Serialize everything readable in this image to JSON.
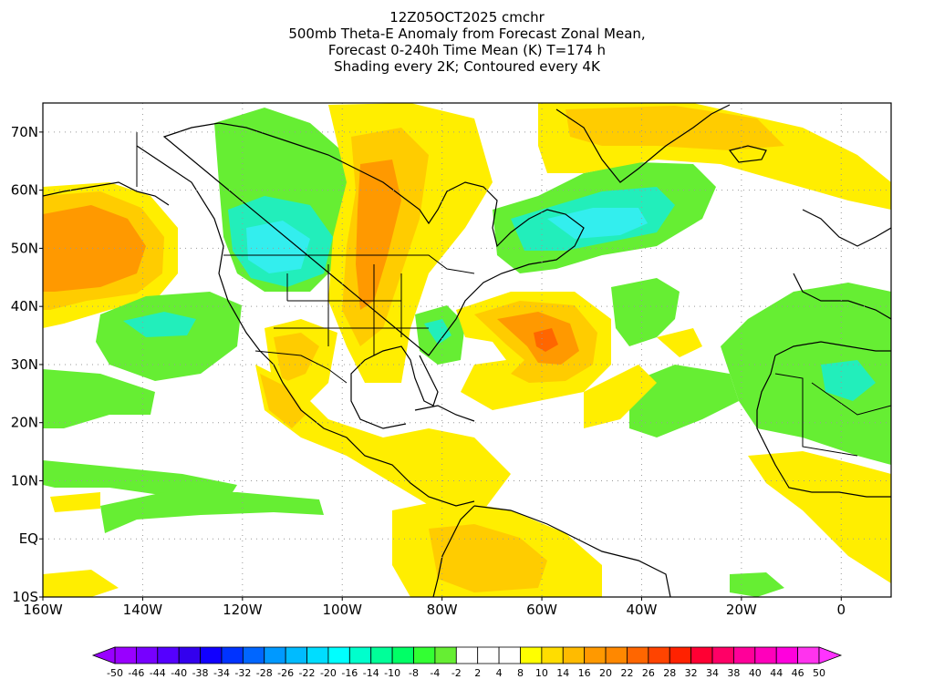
{
  "title": {
    "line1": "12Z05OCT2025 cmchr",
    "line2": "500mb Theta-E Anomaly from Forecast Zonal Mean,",
    "line3": "Forecast 0-240h Time Mean (K) T=174 h",
    "line4": "Shading every 2K; Contoured every 4K"
  },
  "map": {
    "lon_range": [
      -160,
      10
    ],
    "lat_range": [
      -10,
      75
    ],
    "lat_labels": [
      "70N",
      "60N",
      "50N",
      "40N",
      "30N",
      "20N",
      "10N",
      "EQ",
      "10S"
    ],
    "lon_labels": [
      "160W",
      "140W",
      "120W",
      "100W",
      "80W",
      "60W",
      "40W",
      "20W",
      "0"
    ],
    "grid": "dotted",
    "colors": {
      "land_outline": "#000000",
      "green": "#66ee33",
      "teal": "#22eebb",
      "cyan": "#33eeee",
      "yellow": "#ffee00",
      "gold": "#ffcc00",
      "orange": "#ff9900",
      "dark_orange": "#ff6600"
    }
  },
  "colorbar": {
    "labels": [
      "-50",
      "-46",
      "-44",
      "-40",
      "-38",
      "-34",
      "-32",
      "-28",
      "-26",
      "-22",
      "-20",
      "-16",
      "-14",
      "-10",
      "-8",
      "-4",
      "-2",
      "2",
      "4",
      "8",
      "10",
      "14",
      "16",
      "20",
      "22",
      "26",
      "28",
      "32",
      "34",
      "38",
      "40",
      "44",
      "46",
      "50"
    ],
    "colors": [
      "#9900ff",
      "#7700ff",
      "#5500ff",
      "#3300ee",
      "#1100ff",
      "#0033ff",
      "#0066ff",
      "#0099ff",
      "#00bbff",
      "#00ddff",
      "#00ffff",
      "#00ffcc",
      "#00ff99",
      "#00ff66",
      "#33ff33",
      "#66ee33",
      "#ffffff",
      "#ffffff",
      "#ffffff",
      "#ffff00",
      "#ffdd00",
      "#ffbb00",
      "#ff9900",
      "#ff8800",
      "#ff6600",
      "#ff4400",
      "#ff2200",
      "#ff0033",
      "#ff0066",
      "#ff0099",
      "#ff00bb",
      "#ff00dd",
      "#ff33ee"
    ]
  }
}
